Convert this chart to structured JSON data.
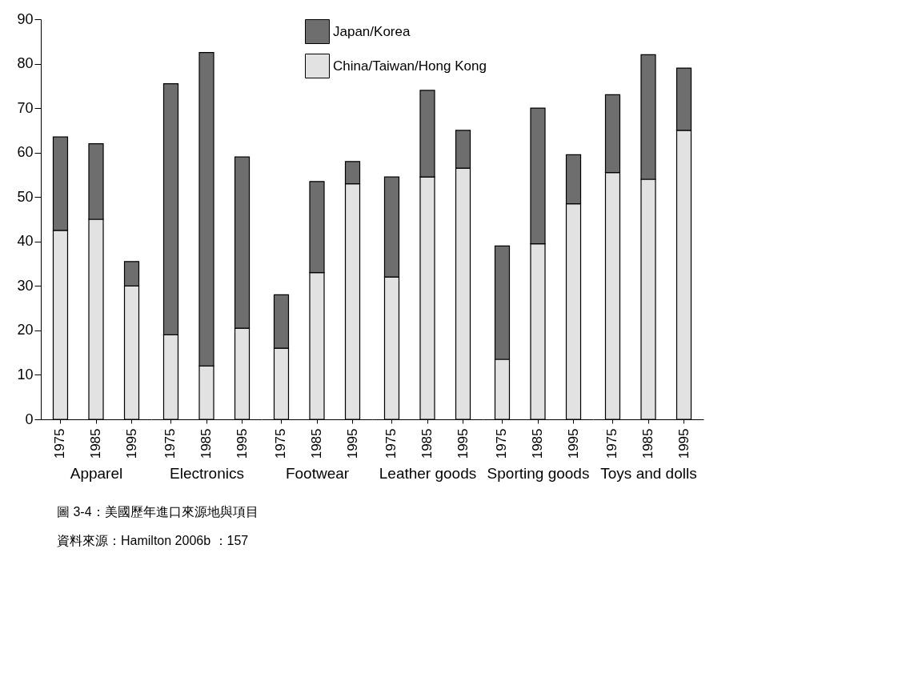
{
  "chart_data": [
    {
      "type": "bar",
      "stacked": true,
      "xlabel": "Apparel",
      "categories": [
        "1975",
        "1985",
        "1995"
      ],
      "ylim": [
        0,
        90
      ],
      "yticks": [
        0,
        10,
        20,
        30,
        40,
        50,
        60,
        70,
        80,
        90
      ],
      "grid": false,
      "legend": "top",
      "series": [
        {
          "name": "China/Taiwan/Hong Kong",
          "color": "#e2e2e2",
          "values": [
            42.5,
            45,
            30
          ]
        },
        {
          "name": "Japan/Korea",
          "color": "#6e6e6e",
          "values": [
            21,
            17,
            5.5
          ]
        }
      ],
      "annotations": [
        "圖 3-4：美國歷年進口來源地與項目",
        "資料來源：Hamilton 2006b ：157"
      ]
    },
    {
      "type": "bar",
      "stacked": true,
      "xlabel": "Electronics",
      "categories": [
        "1975",
        "1985",
        "1995"
      ],
      "ylim": [
        0,
        90
      ],
      "grid": false,
      "tick_labels": "x",
      "series": [
        {
          "color": "#e2e2e2",
          "values": [
            19,
            12,
            20.5
          ]
        },
        {
          "color": "#6e6e6e",
          "values": [
            56.5,
            70.5,
            38.5
          ]
        }
      ]
    },
    {
      "type": "bar",
      "stacked": true,
      "xlabel": "Footwear",
      "categories": [
        "1975",
        "1985",
        "1995"
      ],
      "ylim": [
        0,
        90
      ],
      "grid": false,
      "tick_labels": "x",
      "series": [
        {
          "color": "#e2e2e2",
          "values": [
            16,
            33,
            53
          ]
        },
        {
          "color": "#6e6e6e",
          "values": [
            12,
            20.5,
            5
          ]
        }
      ]
    },
    {
      "type": "bar",
      "stacked": true,
      "xlabel": "Leather goods",
      "categories": [
        "1975",
        "1985",
        "1995"
      ],
      "ylim": [
        0,
        90
      ],
      "grid": false,
      "tick_labels": "x",
      "series": [
        {
          "color": "#e2e2e2",
          "values": [
            32,
            54.5,
            56.5
          ]
        },
        {
          "color": "#6e6e6e",
          "values": [
            22.5,
            19.5,
            8.5
          ]
        }
      ]
    },
    {
      "type": "bar",
      "stacked": true,
      "xlabel": "Sporting goods",
      "categories": [
        "1975",
        "1985",
        "1995"
      ],
      "ylim": [
        0,
        90
      ],
      "grid": false,
      "tick_labels": "x",
      "series": [
        {
          "color": "#e2e2e2",
          "values": [
            13.5,
            39.5,
            48.5
          ]
        },
        {
          "color": "#6e6e6e",
          "values": [
            25.5,
            30.5,
            11
          ]
        }
      ]
    },
    {
      "type": "bar",
      "stacked": true,
      "xlabel": "Toys and dolls",
      "categories": [
        "1975",
        "1985",
        "1995"
      ],
      "ylim": [
        0,
        90
      ],
      "grid": false,
      "tick_labels": "x",
      "series": [
        {
          "color": "#e2e2e2",
          "values": [
            55.5,
            54,
            65
          ]
        },
        {
          "color": "#6e6e6e",
          "values": [
            17.5,
            28,
            14
          ]
        }
      ]
    }
  ]
}
